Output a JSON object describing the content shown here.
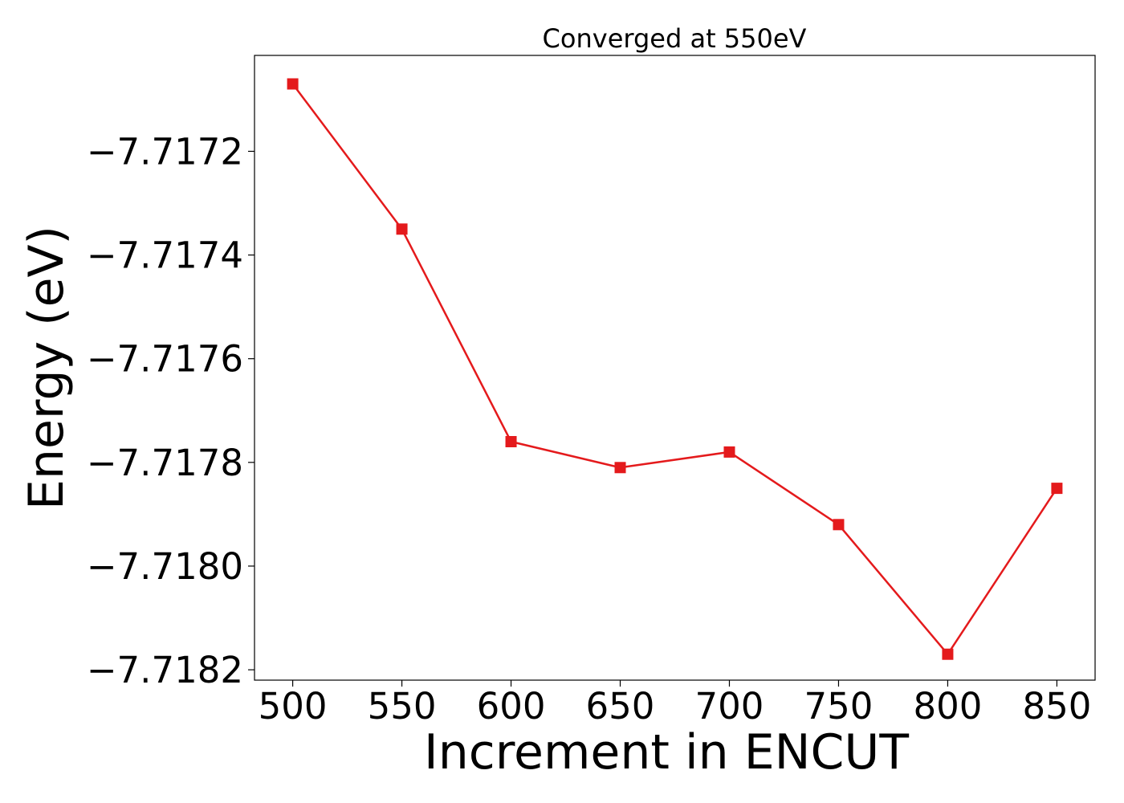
{
  "chart_data": {
    "type": "line",
    "title": "Converged at 550eV",
    "xlabel": "Increment in ENCUT",
    "ylabel": "Energy (eV)",
    "x": [
      500,
      550,
      600,
      650,
      700,
      750,
      800,
      850
    ],
    "series": [
      {
        "values": [
          -7.71707,
          -7.71735,
          -7.71776,
          -7.71781,
          -7.71778,
          -7.71792,
          -7.71817,
          -7.71785
        ],
        "color": "#e41a1c",
        "marker": "square"
      }
    ],
    "xticks": [
      500,
      550,
      600,
      650,
      700,
      750,
      800,
      850
    ],
    "xtick_labels": [
      "500",
      "550",
      "600",
      "650",
      "700",
      "750",
      "800",
      "850"
    ],
    "yticks": [
      -7.7172,
      -7.7174,
      -7.7176,
      -7.7178,
      -7.718,
      -7.7182
    ],
    "ytick_labels": [
      "−7.7172",
      "−7.7174",
      "−7.7176",
      "−7.7178",
      "−7.7180",
      "−7.7182"
    ],
    "xlim": [
      482.5,
      867.5
    ],
    "ylim": [
      -7.71822,
      -7.717015
    ],
    "grid": false,
    "legend": "none"
  }
}
